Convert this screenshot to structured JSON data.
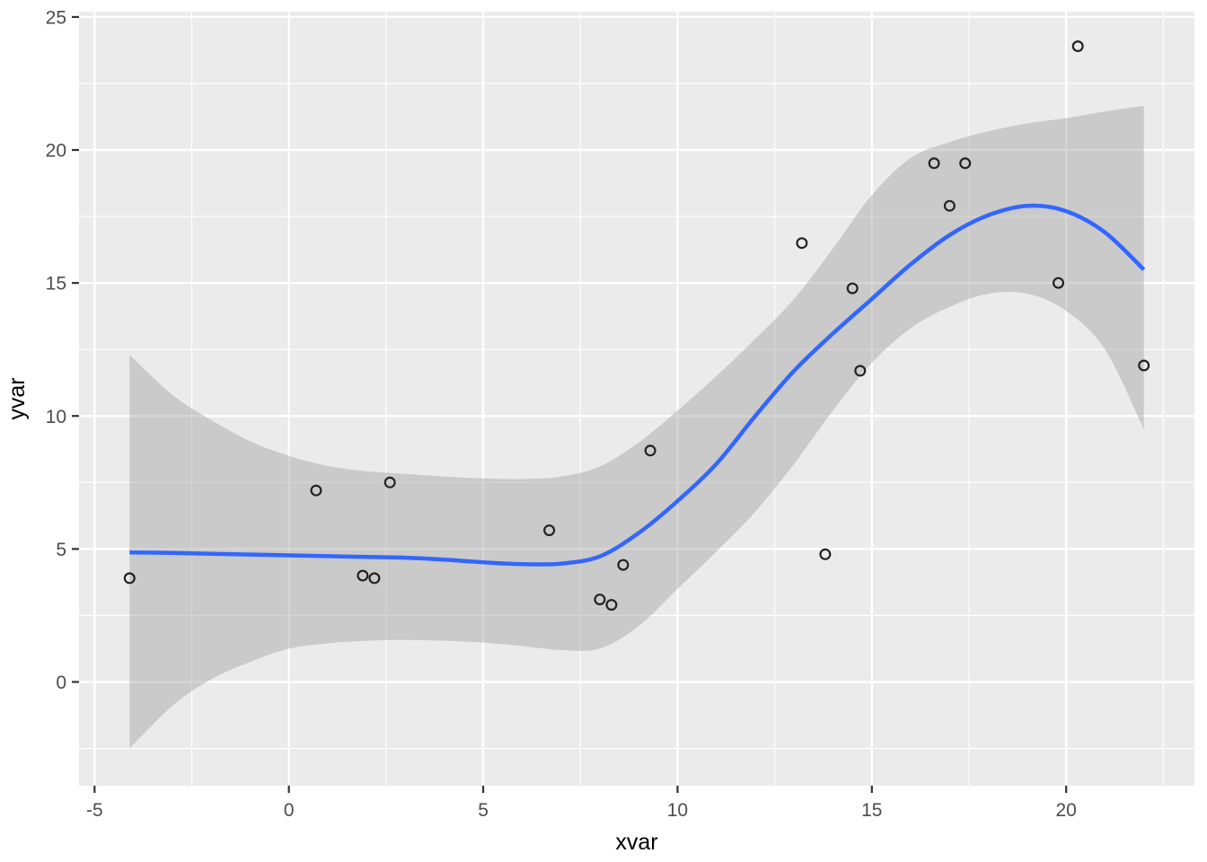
{
  "figure": {
    "background": "#ffffff"
  },
  "chart_data": {
    "type": "scatter",
    "title": "",
    "xlabel": "xvar",
    "ylabel": "yvar",
    "legend": null,
    "grid": "on",
    "panel_background": "#EBEBEB",
    "colors": {
      "major_grid": "#FFFFFF",
      "minor_grid": "#FFFFFF",
      "smooth_line": "#3366FF",
      "band_fill": "#999999",
      "band_opacity": 0.4,
      "point_stroke": "#222222",
      "tick_mark": "#333333",
      "tick_label": "#4D4D4D",
      "axis_title": "#000000"
    },
    "x_axis": {
      "range": [
        -5.4,
        23.3
      ],
      "ticks": [
        -5,
        0,
        5,
        10,
        15,
        20
      ],
      "tick_labels": [
        "-5",
        "0",
        "5",
        "10",
        "15",
        "20"
      ],
      "minor_ticks": [
        -2.5,
        2.5,
        7.5,
        12.5,
        17.5,
        22.5
      ]
    },
    "y_axis": {
      "range": [
        -3.9,
        25.2
      ],
      "ticks": [
        0,
        5,
        10,
        15,
        20,
        25
      ],
      "tick_labels": [
        "0",
        "5",
        "10",
        "15",
        "20",
        "25"
      ],
      "minor_ticks": [
        -2.5,
        2.5,
        7.5,
        12.5,
        17.5,
        22.5
      ]
    },
    "points": [
      {
        "x": -4.1,
        "y": 3.9
      },
      {
        "x": 0.7,
        "y": 7.2
      },
      {
        "x": 1.9,
        "y": 4.0
      },
      {
        "x": 2.2,
        "y": 3.9
      },
      {
        "x": 2.6,
        "y": 7.5
      },
      {
        "x": 6.7,
        "y": 5.7
      },
      {
        "x": 8.0,
        "y": 3.1
      },
      {
        "x": 8.3,
        "y": 2.9
      },
      {
        "x": 8.6,
        "y": 4.4
      },
      {
        "x": 9.3,
        "y": 8.7
      },
      {
        "x": 13.2,
        "y": 16.5
      },
      {
        "x": 13.8,
        "y": 4.8
      },
      {
        "x": 14.5,
        "y": 14.8
      },
      {
        "x": 14.7,
        "y": 11.7
      },
      {
        "x": 16.6,
        "y": 19.5
      },
      {
        "x": 17.0,
        "y": 17.9
      },
      {
        "x": 17.4,
        "y": 19.5
      },
      {
        "x": 19.8,
        "y": 15.0
      },
      {
        "x": 20.3,
        "y": 23.9
      },
      {
        "x": 22.0,
        "y": 11.9
      }
    ],
    "smooth_line": {
      "method": "loess",
      "x": [
        -4.1,
        -3,
        -2,
        -1,
        0,
        1,
        2,
        3,
        4,
        5,
        6,
        7,
        8,
        9,
        10,
        11,
        12,
        13,
        14,
        15,
        16,
        17,
        18,
        19,
        20,
        21,
        22
      ],
      "y": [
        4.87,
        4.85,
        4.82,
        4.79,
        4.76,
        4.73,
        4.7,
        4.67,
        4.6,
        4.5,
        4.43,
        4.45,
        4.72,
        5.6,
        6.8,
        8.2,
        10.0,
        11.7,
        13.1,
        14.4,
        15.7,
        16.8,
        17.55,
        17.9,
        17.7,
        16.9,
        15.5
      ]
    },
    "confidence_band": {
      "x": [
        -4.1,
        -3,
        -2,
        -1,
        0,
        1,
        2,
        3,
        4,
        5,
        6,
        7,
        8,
        9,
        10,
        11,
        12,
        13,
        14,
        15,
        16,
        17,
        18,
        19,
        20,
        21,
        22
      ],
      "upper": [
        12.3,
        10.8,
        9.85,
        9.05,
        8.5,
        8.12,
        7.92,
        7.82,
        7.72,
        7.65,
        7.63,
        7.72,
        8.1,
        9.0,
        10.2,
        11.5,
        12.9,
        14.4,
        16.3,
        18.3,
        19.7,
        20.3,
        20.7,
        21.0,
        21.2,
        21.45,
        21.66
      ],
      "lower": [
        -2.5,
        -0.9,
        0.1,
        0.75,
        1.25,
        1.45,
        1.55,
        1.58,
        1.55,
        1.48,
        1.35,
        1.2,
        1.25,
        2.1,
        3.5,
        4.9,
        6.4,
        8.2,
        10.2,
        12.0,
        13.3,
        14.1,
        14.6,
        14.6,
        13.95,
        12.5,
        9.5
      ]
    }
  }
}
